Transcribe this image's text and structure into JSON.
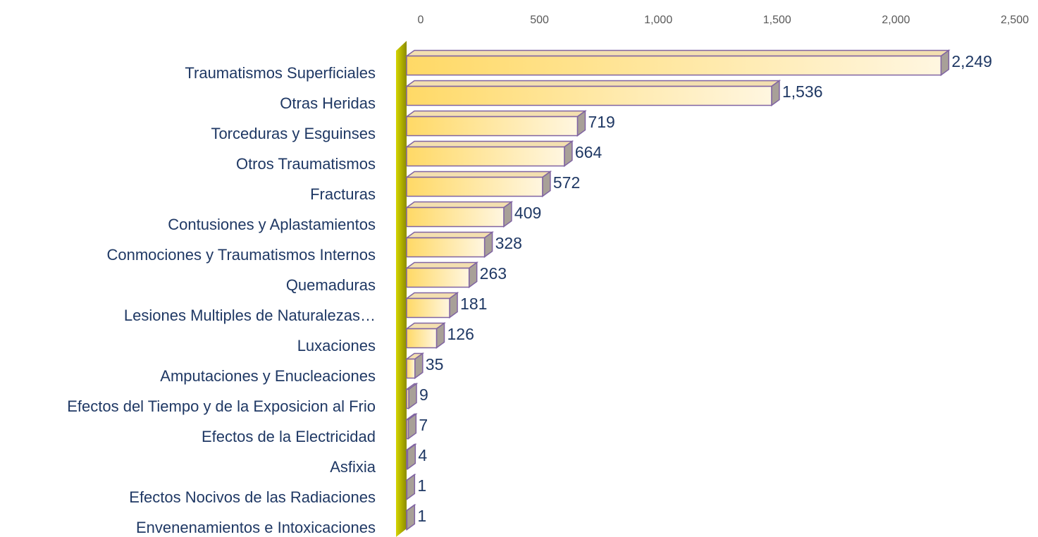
{
  "chart_data": {
    "type": "bar",
    "orientation": "horizontal",
    "categories": [
      "Traumatismos Superficiales",
      "Otras Heridas",
      "Torceduras y Esguinses",
      "Otros Traumatismos",
      "Fracturas",
      "Contusiones y Aplastamientos",
      "Conmociones y Traumatismos Internos",
      "Quemaduras",
      "Lesiones Multiples de Naturalezas…",
      "Luxaciones",
      "Amputaciones y Enucleaciones",
      "Efectos del Tiempo y de la Exposicion al Frio",
      "Efectos de la Electricidad",
      "Asfixia",
      "Efectos Nocivos de las Radiaciones",
      "Envenenamientos e Intoxicaciones"
    ],
    "values": [
      2249,
      1536,
      719,
      664,
      572,
      409,
      328,
      263,
      181,
      126,
      35,
      9,
      7,
      4,
      1,
      1
    ],
    "value_labels": [
      "2,249",
      "1,536",
      "719",
      "664",
      "572",
      "409",
      "328",
      "263",
      "181",
      "126",
      "35",
      "9",
      "7",
      "4",
      "1",
      "1"
    ],
    "color": "#ffd966",
    "xlim": [
      0,
      2500
    ],
    "xticks": [
      0,
      500,
      {
        "value": 1000,
        "label": "1,000"
      },
      {
        "value": 1500,
        "label": "1,500"
      },
      {
        "value": 2000,
        "label": "2,000"
      },
      {
        "value": 2500,
        "label": "2,500"
      }
    ],
    "grid": false
  }
}
